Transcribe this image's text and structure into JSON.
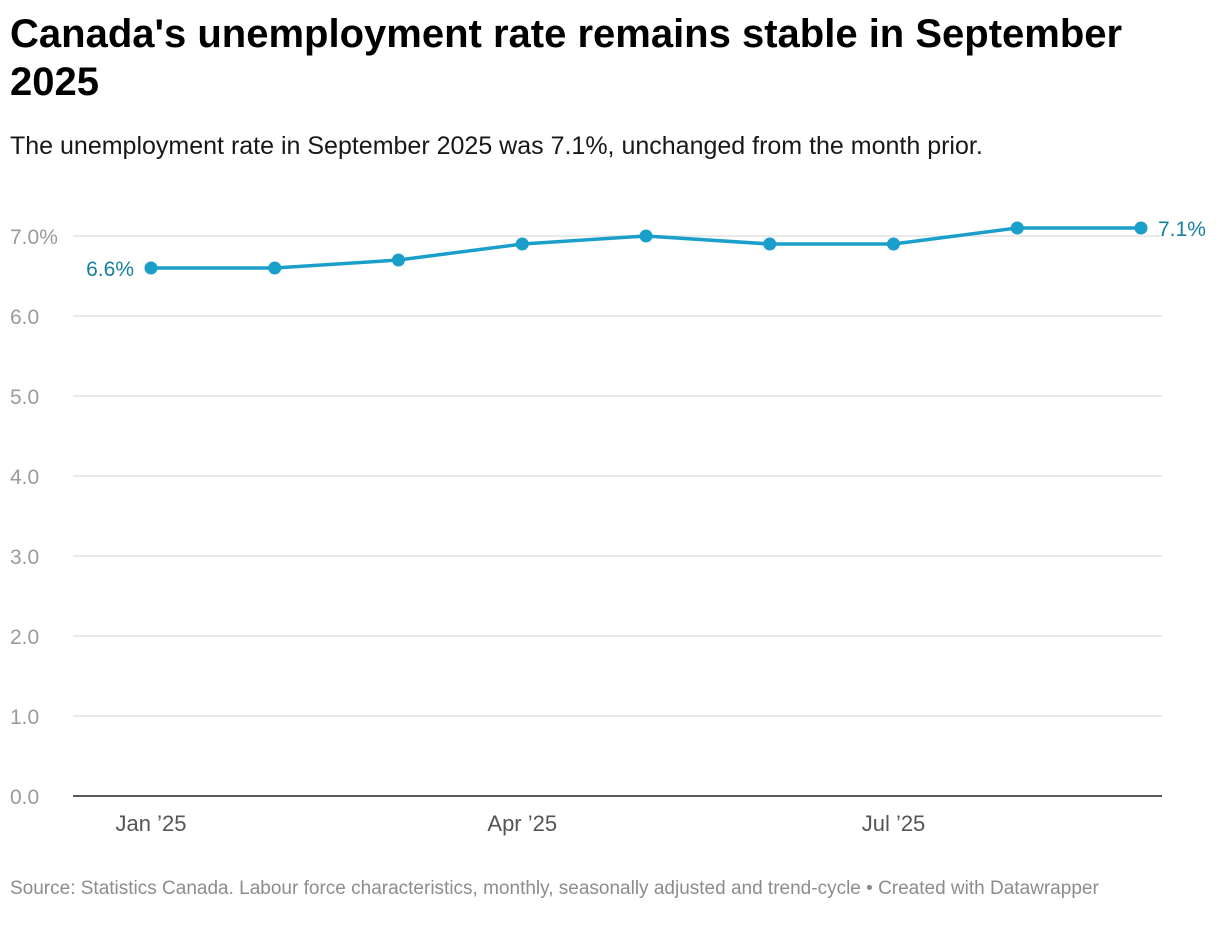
{
  "title": "Canada's unemployment rate remains stable in September 2025",
  "subtitle": "The unemployment rate in September 2025 was 7.1%, unchanged from the month prior.",
  "source": "Source: Statistics Canada. Labour force characteristics, monthly, seasonally adjusted and trend-cycle • Created with Datawrapper",
  "colors": {
    "line": "#1a9fcb",
    "label": "#15819f",
    "grid": "#e3e3e3",
    "axis": "#222222",
    "tick_text": "#9a9a9a",
    "x_tick_text": "#555555"
  },
  "chart_data": {
    "type": "line",
    "title": "Canada's unemployment rate remains stable in September 2025",
    "xlabel": "",
    "ylabel": "",
    "x": [
      "Jan 2025",
      "Feb 2025",
      "Mar 2025",
      "Apr 2025",
      "May 2025",
      "Jun 2025",
      "Jul 2025",
      "Aug 2025",
      "Sep 2025"
    ],
    "series": [
      {
        "name": "Unemployment rate",
        "values": [
          6.6,
          6.6,
          6.7,
          6.9,
          7.0,
          6.9,
          6.9,
          7.1,
          7.1
        ]
      }
    ],
    "ylim": [
      0,
      7
    ],
    "yticks": [
      0,
      1,
      2,
      3,
      4,
      5,
      6,
      7
    ],
    "ytick_labels": [
      "0.0",
      "1.0",
      "2.0",
      "3.0",
      "4.0",
      "5.0",
      "6.0",
      "7.0%"
    ],
    "xticks": [
      {
        "index": 0,
        "label": "Jan ’25"
      },
      {
        "index": 3,
        "label": "Apr ’25"
      },
      {
        "index": 6,
        "label": "Jul ’25"
      }
    ],
    "annotations": [
      {
        "index": 0,
        "text": "6.6%",
        "side": "left"
      },
      {
        "index": 8,
        "text": "7.1%",
        "side": "right"
      }
    ],
    "grid": true
  }
}
